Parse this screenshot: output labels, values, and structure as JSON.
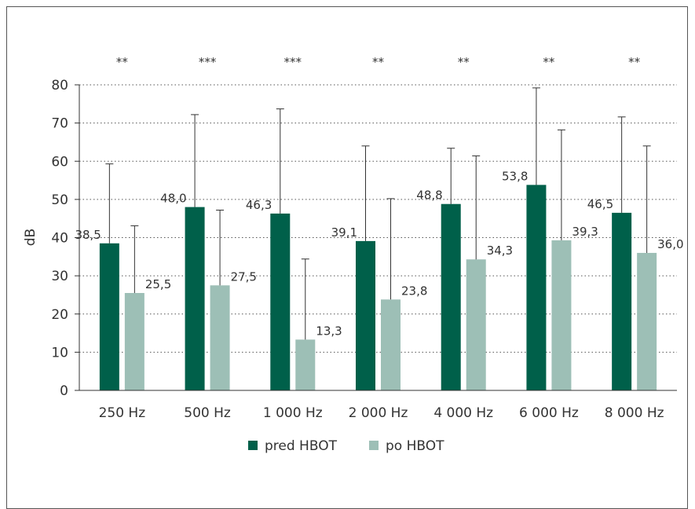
{
  "chart_data": {
    "type": "bar",
    "categories": [
      "250 Hz",
      "500 Hz",
      "1 000 Hz",
      "2 000 Hz",
      "4 000 Hz",
      "6 000 Hz",
      "8 000 Hz"
    ],
    "series": [
      {
        "name": "pred HBOT",
        "color": "#00604a",
        "values": [
          38.5,
          48.0,
          46.3,
          39.1,
          48.8,
          53.8,
          46.5
        ],
        "labels": [
          "38,5",
          "48,0",
          "46,3",
          "39,1",
          "48,8",
          "53,8",
          "46,5"
        ],
        "error_upper": [
          59.3,
          72.2,
          73.7,
          64.0,
          63.4,
          79.2,
          71.6
        ]
      },
      {
        "name": "po HBOT",
        "color": "#9dbfb6",
        "values": [
          25.5,
          27.5,
          13.3,
          23.8,
          34.3,
          39.3,
          36.0
        ],
        "labels": [
          "25,5",
          "27,5",
          "13,3",
          "23,8",
          "34,3",
          "39,3",
          "36,0"
        ],
        "error_upper": [
          43.1,
          47.2,
          34.4,
          50.2,
          61.4,
          68.2,
          64.0
        ]
      }
    ],
    "significance": [
      "**",
      "***",
      "***",
      "**",
      "**",
      "**",
      "**"
    ],
    "ylabel": "dB",
    "xlabel": "",
    "ylim": [
      0,
      80
    ],
    "yticks": [
      0,
      10,
      20,
      30,
      40,
      50,
      60,
      70,
      80
    ],
    "grid": "dotted-horizontal",
    "legend_position": "bottom"
  }
}
